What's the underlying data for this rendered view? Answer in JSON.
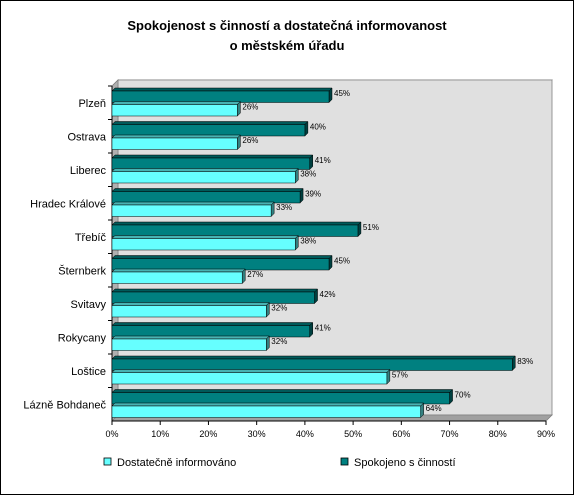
{
  "chart_data": {
    "type": "bar",
    "orientation": "horizontal",
    "title_lines": [
      "Spokojenost s činností a dostatečná informovanost",
      "o městském úřadu"
    ],
    "categories": [
      "Plzeň",
      "Ostrava",
      "Liberec",
      "Hradec Králové",
      "Třebíč",
      "Šternberk",
      "Svitavy",
      "Rokycany",
      "Loštice",
      "Lázně Bohdaneč"
    ],
    "series": [
      {
        "name": "Spokojeno s činností",
        "color": "#008080",
        "values": [
          45,
          40,
          41,
          39,
          51,
          45,
          42,
          41,
          83,
          70
        ],
        "labels": [
          "45%",
          "40%",
          "41%",
          "39%",
          "51%",
          "45%",
          "42%",
          "41%",
          "83%",
          "70%"
        ]
      },
      {
        "name": "Dostatečně informováno",
        "color": "#66FFFF",
        "values": [
          26,
          26,
          38,
          33,
          38,
          27,
          32,
          32,
          57,
          64
        ],
        "labels": [
          "26%",
          "26%",
          "38%",
          "33%",
          "38%",
          "27%",
          "32%",
          "32%",
          "57%",
          "64%"
        ]
      }
    ],
    "x_ticks": [
      "0%",
      "10%",
      "20%",
      "30%",
      "40%",
      "50%",
      "60%",
      "70%",
      "80%",
      "90%"
    ],
    "xlim": [
      0,
      90
    ],
    "grid": false,
    "plot_background": "#E0E0E0",
    "legend_position": "bottom",
    "legend_order": [
      "Dostatečně informováno",
      "Spokojeno s činností"
    ]
  }
}
